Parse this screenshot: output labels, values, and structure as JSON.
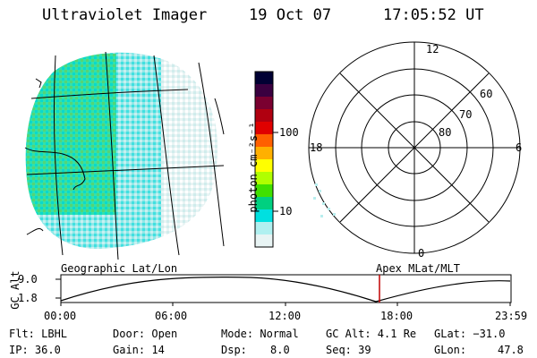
{
  "header": {
    "title": "Ultraviolet Imager",
    "date": "19 Oct 07",
    "time": "17:05:52 UT"
  },
  "colorbar": {
    "unit_label": "photon cm⁻²s⁻¹",
    "ticks": [
      "100",
      "10"
    ],
    "colors": [
      "#000033",
      "#3a0040",
      "#7a0030",
      "#b00010",
      "#e00000",
      "#ff6000",
      "#ffb000",
      "#ffff00",
      "#b0ff00",
      "#40e000",
      "#00d080",
      "#00e0e0",
      "#b0f0f0",
      "#e8f4f4"
    ]
  },
  "geo_panel": {
    "label": "Geographic Lat/Lon"
  },
  "polar_panel": {
    "label": "Apex MLat/MLT",
    "lat_labels": [
      "60",
      "70",
      "80"
    ],
    "mlt_labels": {
      "top": "12",
      "left": "18",
      "right": "6",
      "bottom": "0"
    }
  },
  "altitude_plot": {
    "ylabel": "GC Alt",
    "yticks": [
      "9.0",
      "1.8"
    ],
    "xticks": [
      "00:00",
      "06:00",
      "12:00",
      "18:00",
      "23:59"
    ],
    "marker_time": "17:05:52"
  },
  "footer": {
    "flt": "Flt: LBHL",
    "ip": "IP: 36.0",
    "door": "Door: Open",
    "gain": "Gain: 14",
    "mode": "Mode: Normal",
    "dsp": "Dsp:",
    "dsp_val": "8.0",
    "gcalt": "GC Alt: 4.1 Re",
    "seq": "Seq: 39",
    "glat": "GLat: −31.0",
    "glon": "GLon:",
    "glon_val": "47.8"
  }
}
